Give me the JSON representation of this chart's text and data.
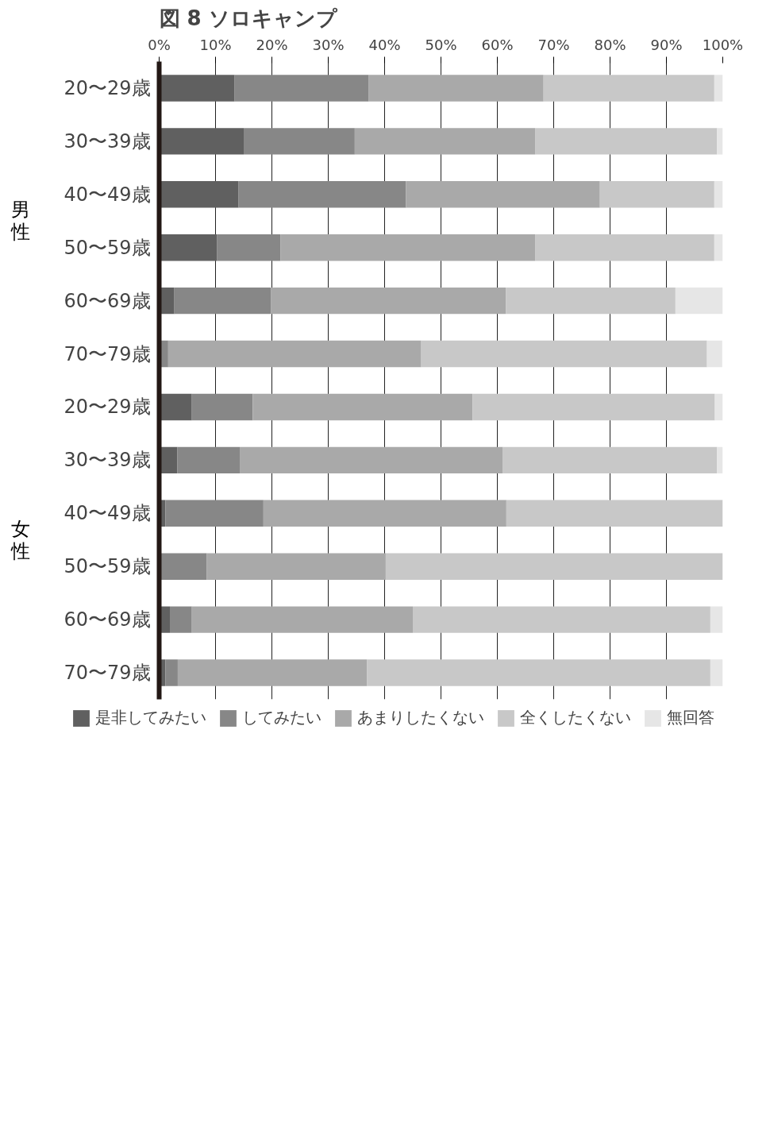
{
  "chart_data": {
    "type": "bar",
    "orientation": "horizontal",
    "stacked": true,
    "title": "図 8 ソロキャンプ",
    "categories": [
      "20〜29歳",
      "30〜39歳",
      "40〜49歳",
      "50〜59歳",
      "60〜69歳",
      "70〜79歳",
      "20〜29歳",
      "30〜39歳",
      "40〜49歳",
      "50〜59歳",
      "60〜69歳",
      "70〜79歳"
    ],
    "series": [
      {
        "name": "是非してみたい",
        "color": "#606060",
        "values": [
          13.4,
          15.0,
          14.1,
          10.3,
          2.7,
          0,
          5.8,
          3.2,
          1.1,
          0,
          1.9,
          1.1
        ]
      },
      {
        "name": "してみたい",
        "color": "#878787",
        "values": [
          23.8,
          19.7,
          29.7,
          11.2,
          17.1,
          1.6,
          10.8,
          11.1,
          17.4,
          8.4,
          3.9,
          2.2
        ]
      },
      {
        "name": "あまりしたくない",
        "color": "#a9a9a9",
        "values": [
          31.0,
          32.0,
          34.4,
          45.2,
          41.7,
          44.9,
          39.0,
          46.7,
          43.1,
          31.8,
          39.2,
          33.6
        ]
      },
      {
        "name": "全くしたくない",
        "color": "#c8c8c8",
        "values": [
          30.3,
          32.3,
          20.3,
          31.8,
          30.1,
          50.7,
          43.0,
          38.0,
          38.4,
          59.8,
          52.8,
          60.9
        ]
      },
      {
        "name": "無回答",
        "color": "#e6e6e6",
        "values": [
          1.5,
          1.0,
          1.5,
          1.5,
          8.4,
          2.7,
          1.4,
          1.0,
          0,
          0,
          2.2,
          2.2
        ]
      }
    ],
    "xlim": [
      0,
      100
    ],
    "xticks": [
      {
        "value": 0,
        "label": "0%"
      },
      {
        "value": 10,
        "label": "10%"
      },
      {
        "value": 20,
        "label": "20%"
      },
      {
        "value": 30,
        "label": "30%"
      },
      {
        "value": 40,
        "label": "40%"
      },
      {
        "value": 50,
        "label": "50%"
      },
      {
        "value": 60,
        "label": "60%"
      },
      {
        "value": 70,
        "label": "70%"
      },
      {
        "value": 80,
        "label": "80%"
      },
      {
        "value": 90,
        "label": "90%"
      },
      {
        "value": 100,
        "label": "100%"
      }
    ],
    "annotations": [
      "男性",
      "女性"
    ],
    "grid": "x",
    "legend": "bottom"
  }
}
